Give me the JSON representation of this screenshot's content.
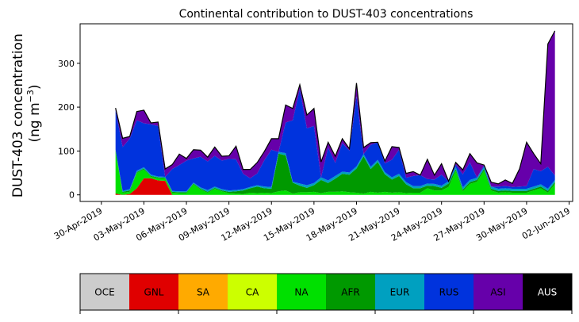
{
  "chart_data": {
    "type": "area",
    "stacked": true,
    "title": "Continental contribution to DUST-403 concentrations",
    "ylabel_line1": "DUST-403 concentration",
    "ylabel_line2_base": "(ng m",
    "ylabel_line2_exp": "−3",
    "ylabel_line2_end": ")",
    "xlabel": "",
    "x_start_date": "2019-05-01",
    "x_step_days": 0.5,
    "xlim_dates": [
      "2019-04-28 12:00",
      "2019-06-02 06:00"
    ],
    "ylim": [
      -15,
      390
    ],
    "yticks": [
      0,
      100,
      200,
      300
    ],
    "xtick_labels": [
      "30-Apr-2019",
      "03-May-2019",
      "06-May-2019",
      "09-May-2019",
      "12-May-2019",
      "15-May-2019",
      "18-May-2019",
      "21-May-2019",
      "24-May-2019",
      "27-May-2019",
      "30-May-2019",
      "02-Jun-2019"
    ],
    "xtick_dates": [
      "2019-04-30",
      "2019-05-03",
      "2019-05-06",
      "2019-05-09",
      "2019-05-12",
      "2019-05-15",
      "2019-05-18",
      "2019-05-21",
      "2019-05-24",
      "2019-05-27",
      "2019-05-30",
      "2019-06-02"
    ],
    "grid": false,
    "legend": {
      "placement": "bottom-colorbar"
    },
    "series": [
      {
        "name": "OCE",
        "color": "#cccccc",
        "values": [
          0,
          0,
          0,
          0,
          0,
          0,
          0,
          0,
          0,
          0,
          0,
          0,
          0,
          0,
          0,
          0,
          0,
          0,
          0,
          0,
          0,
          0,
          0,
          0,
          0,
          0,
          0,
          0,
          0,
          0,
          0,
          0,
          0,
          0,
          0,
          0,
          0,
          0,
          0,
          0,
          0,
          0,
          0,
          0,
          0,
          0,
          0,
          0,
          0,
          0,
          0,
          0,
          0,
          0,
          0,
          0,
          0,
          0,
          0,
          0,
          0,
          0,
          0
        ]
      },
      {
        "name": "GNL",
        "color": "#e00000",
        "values": [
          3,
          0,
          2,
          15,
          38,
          38,
          33,
          32,
          0,
          0,
          0,
          0,
          0,
          0,
          0,
          0,
          0,
          0,
          0,
          0,
          0,
          0,
          0,
          0,
          0,
          0,
          0,
          0,
          0,
          0,
          0,
          0,
          0,
          0,
          0,
          0,
          0,
          0,
          0,
          0,
          0,
          0,
          0,
          0,
          0,
          0,
          0,
          0,
          0,
          0,
          0,
          0,
          0,
          0,
          0,
          0,
          0,
          0,
          0,
          0,
          0,
          0,
          0
        ]
      },
      {
        "name": "SA",
        "color": "#ffaa00",
        "values": [
          0,
          0,
          0,
          0,
          0,
          0,
          0,
          0,
          0,
          0,
          0,
          0,
          0,
          0,
          0,
          0,
          0,
          0,
          0,
          0,
          0,
          0,
          0,
          0,
          0,
          0,
          0,
          0,
          0,
          0,
          0,
          0,
          0,
          0,
          0,
          0,
          0,
          0,
          0,
          0,
          0,
          0,
          0,
          0,
          0,
          0,
          0,
          0,
          0,
          0,
          0,
          0,
          0,
          0,
          0,
          0,
          0,
          0,
          0,
          0,
          0,
          0,
          0
        ]
      },
      {
        "name": "CA",
        "color": "#ccff00",
        "values": [
          0,
          0,
          0,
          0,
          0,
          0,
          0,
          0,
          0,
          0,
          0,
          0,
          0,
          0,
          0,
          0,
          0,
          0,
          0,
          0,
          0,
          0,
          0,
          0,
          0,
          0,
          0,
          0,
          0,
          0,
          0,
          0,
          0,
          0,
          0,
          0,
          0,
          0,
          0,
          0,
          0,
          0,
          0,
          0,
          0,
          0,
          0,
          0,
          0,
          0,
          0,
          0,
          0,
          0,
          0,
          0,
          0,
          0,
          0,
          0,
          0,
          0,
          0
        ]
      },
      {
        "name": "NA",
        "color": "#00e000",
        "values": [
          97,
          5,
          5,
          35,
          20,
          3,
          5,
          5,
          5,
          4,
          4,
          24,
          12,
          5,
          14,
          8,
          4,
          3,
          2,
          5,
          4,
          5,
          4,
          8,
          10,
          3,
          6,
          6,
          7,
          4,
          7,
          7,
          8,
          6,
          5,
          3,
          7,
          5,
          7,
          5,
          6,
          4,
          5,
          5,
          15,
          10,
          10,
          18,
          55,
          8,
          25,
          30,
          55,
          10,
          5,
          6,
          5,
          5,
          5,
          10,
          15,
          5,
          25
        ]
      },
      {
        "name": "AFR",
        "color": "#009900",
        "values": [
          2,
          2,
          3,
          2,
          2,
          2,
          2,
          2,
          2,
          2,
          2,
          2,
          2,
          2,
          2,
          2,
          3,
          5,
          8,
          10,
          15,
          10,
          10,
          86,
          80,
          25,
          15,
          10,
          15,
          30,
          20,
          30,
          40,
          40,
          55,
          85,
          52,
          70,
          40,
          30,
          37,
          20,
          10,
          10,
          6,
          10,
          6,
          8,
          4,
          4,
          4,
          4,
          4,
          4,
          4,
          4,
          4,
          4,
          4,
          4,
          4,
          4,
          4
        ]
      },
      {
        "name": "EUR",
        "color": "#00a0c0",
        "values": [
          1,
          2,
          3,
          3,
          3,
          3,
          2,
          2,
          2,
          2,
          2,
          2,
          3,
          4,
          3,
          3,
          3,
          3,
          3,
          3,
          3,
          4,
          4,
          4,
          5,
          2,
          5,
          6,
          5,
          6,
          6,
          6,
          5,
          5,
          5,
          5,
          5,
          5,
          5,
          5,
          5,
          5,
          5,
          5,
          5,
          5,
          5,
          5,
          5,
          5,
          5,
          5,
          5,
          5,
          5,
          5,
          5,
          5,
          5,
          5,
          5,
          5,
          5
        ]
      },
      {
        "name": "RUS",
        "color": "#0033dd",
        "values": [
          90,
          100,
          115,
          115,
          100,
          115,
          115,
          0,
          50,
          60,
          70,
          55,
          70,
          65,
          70,
          65,
          72,
          70,
          35,
          20,
          27,
          60,
          85,
          0,
          70,
          140,
          215,
          130,
          130,
          0,
          75,
          30,
          65,
          50,
          160,
          0,
          50,
          40,
          20,
          40,
          55,
          10,
          23,
          25,
          10,
          10,
          25,
          0,
          5,
          30,
          40,
          0,
          4,
          0,
          5,
          5,
          4,
          5,
          6,
          40,
          30,
          50,
          10
        ]
      },
      {
        "name": "ASI",
        "color": "#6600aa",
        "values": [
          5,
          20,
          5,
          20,
          30,
          3,
          9,
          18,
          10,
          25,
          5,
          20,
          15,
          10,
          20,
          10,
          7,
          30,
          10,
          20,
          25,
          20,
          25,
          30,
          40,
          27,
          10,
          30,
          40,
          35,
          12,
          15,
          10,
          4,
          30,
          15,
          5,
          0,
          5,
          30,
          5,
          10,
          10,
          0,
          45,
          10,
          25,
          0,
          5,
          10,
          20,
          34,
          0,
          10,
          6,
          14,
          8,
          40,
          100,
          35,
          17,
          280,
          330
        ]
      },
      {
        "name": "AUS",
        "color": "#000000",
        "values": [
          0,
          0,
          0,
          0,
          0,
          0,
          0,
          0,
          0,
          0,
          0,
          0,
          0,
          0,
          0,
          0,
          0,
          0,
          0,
          0,
          0,
          0,
          0,
          0,
          0,
          0,
          0,
          0,
          0,
          0,
          0,
          0,
          0,
          0,
          0,
          0,
          0,
          0,
          0,
          0,
          0,
          0,
          0,
          0,
          0,
          0,
          0,
          0,
          0,
          0,
          0,
          0,
          0,
          0,
          0,
          0,
          0,
          0,
          0,
          0,
          0,
          0,
          0
        ]
      }
    ]
  }
}
